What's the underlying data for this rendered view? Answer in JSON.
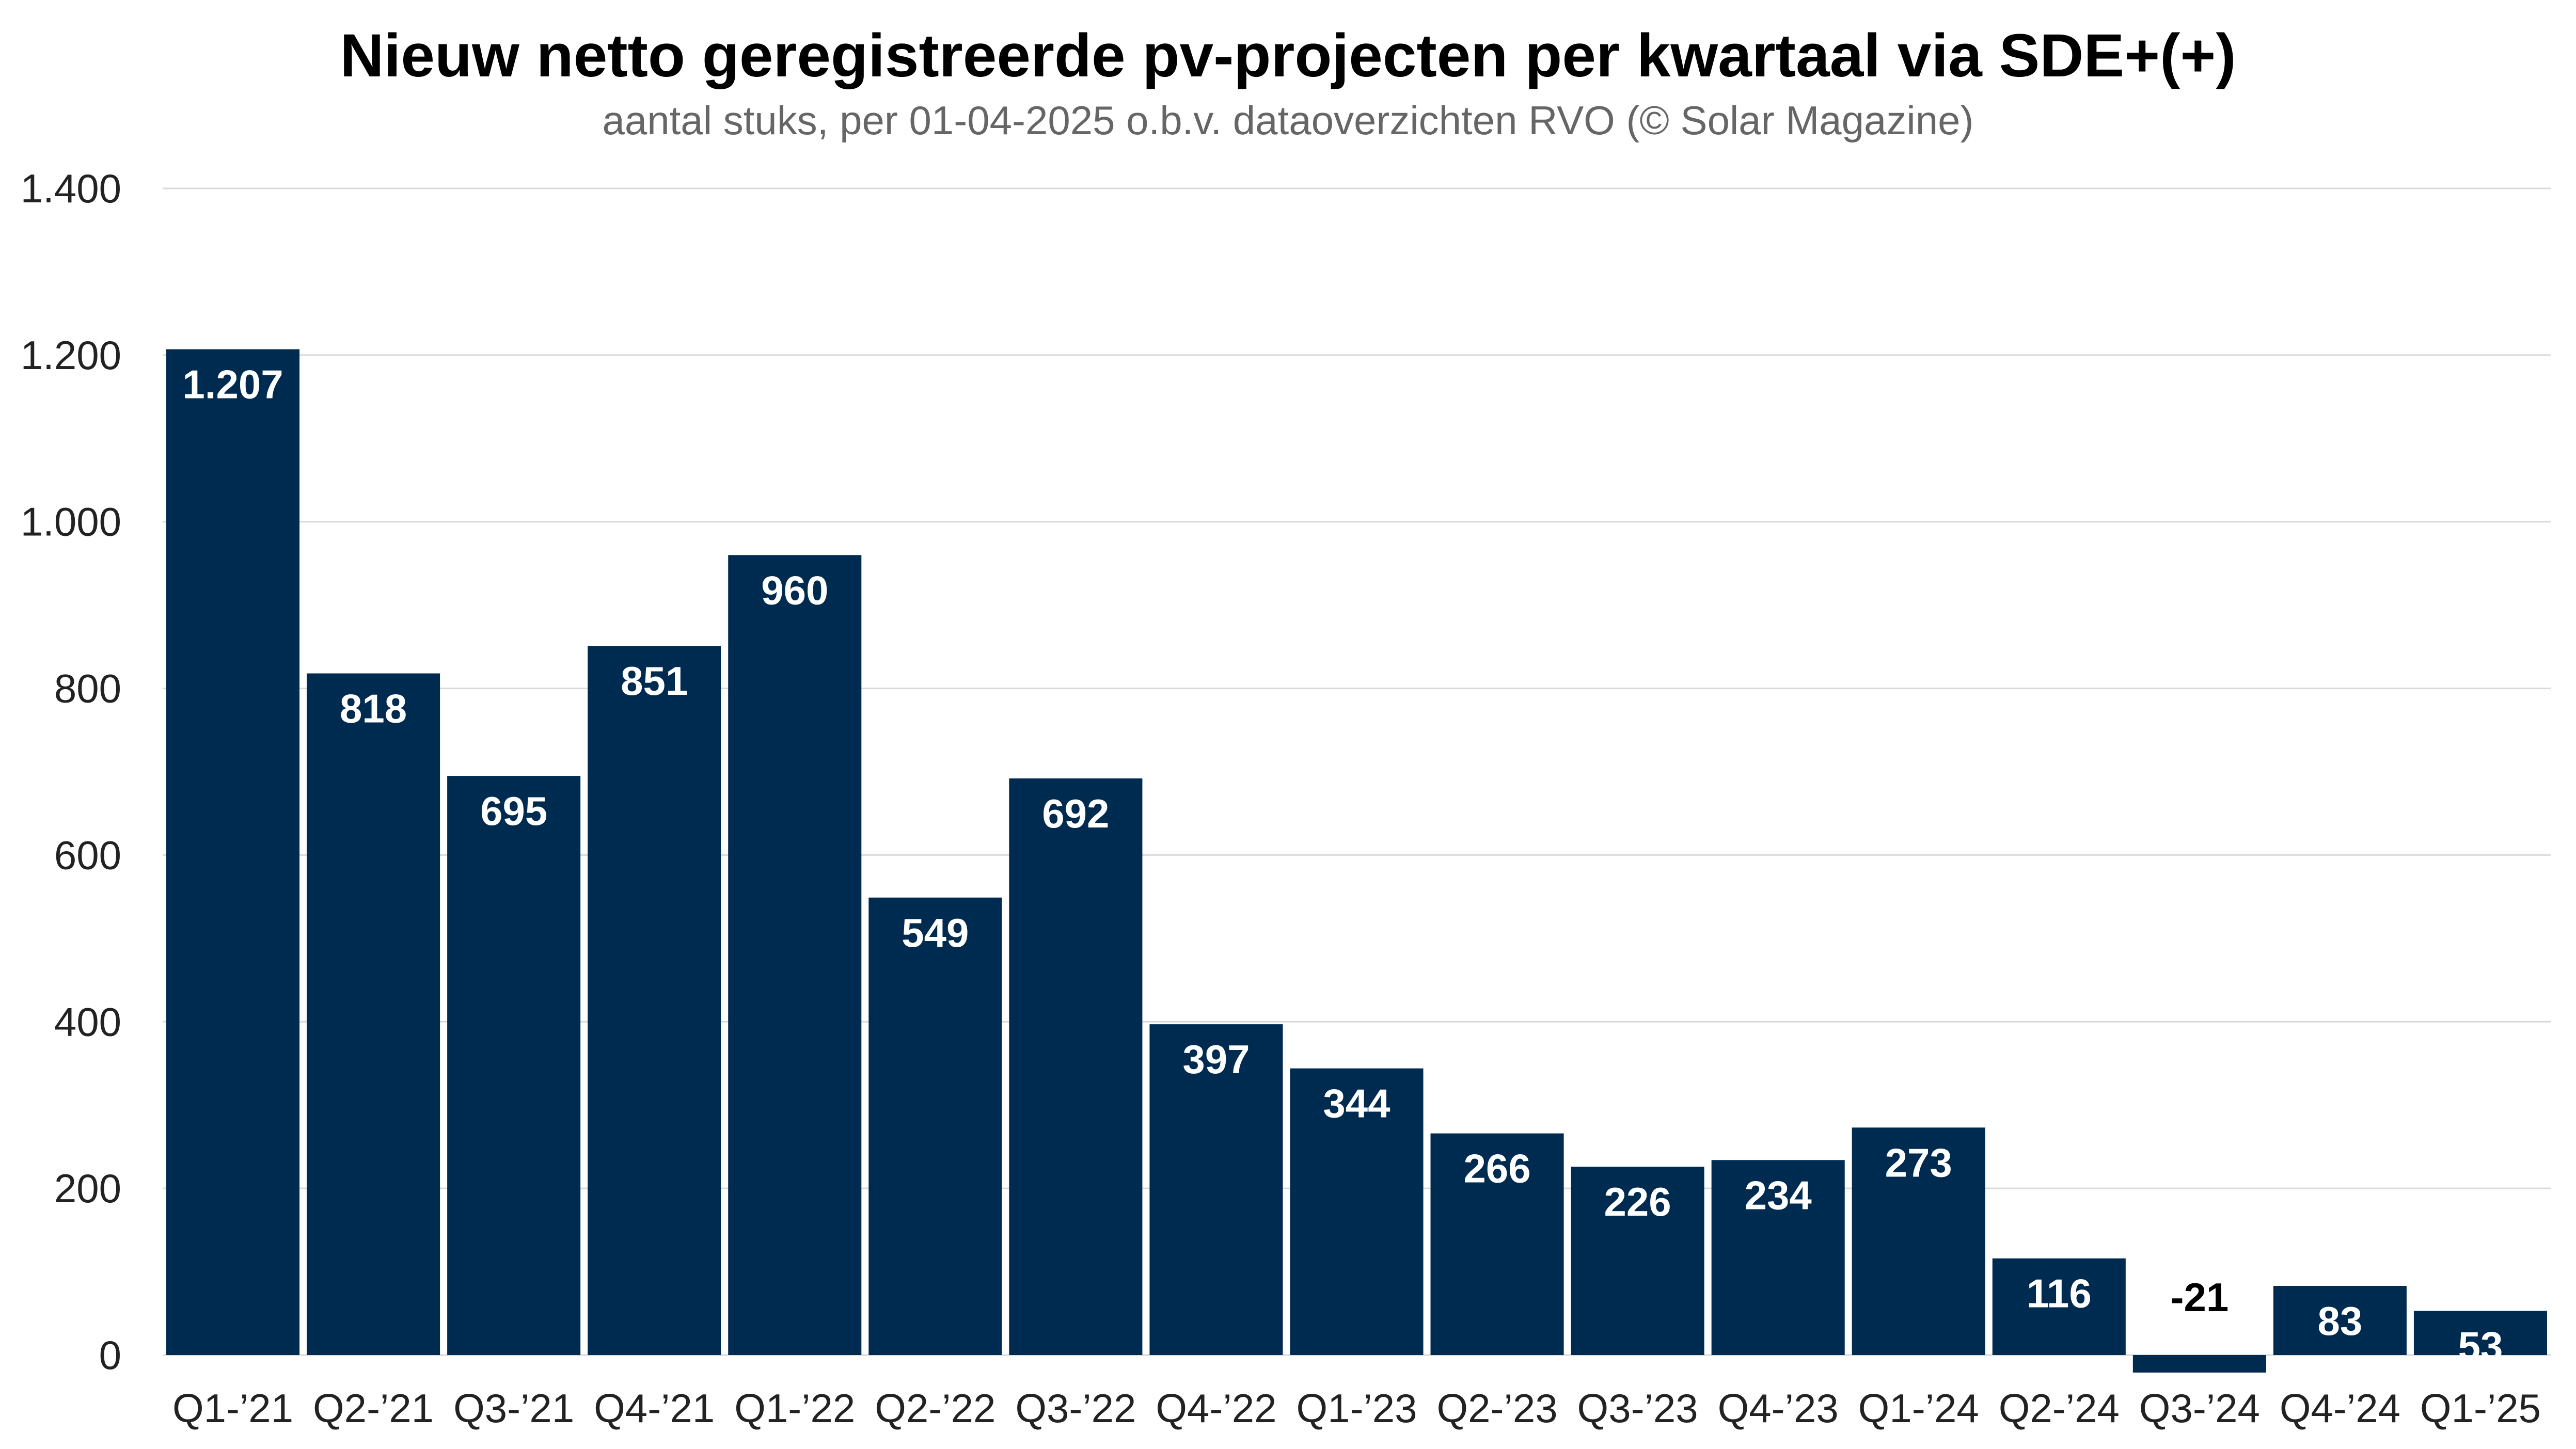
{
  "chart_data": {
    "type": "bar",
    "title": "Nieuw netto geregistreerde pv-projecten per kwartaal via SDE+(+)",
    "subtitle": "aantal stuks, per 01-04-2025 o.b.v. dataoverzichten RVO (© Solar Magazine)",
    "xlabel": "",
    "ylabel": "",
    "categories": [
      "Q1-’21",
      "Q2-’21",
      "Q3-’21",
      "Q4-’21",
      "Q1-’22",
      "Q2-’22",
      "Q3-’22",
      "Q4-’22",
      "Q1-’23",
      "Q2-’23",
      "Q3-’23",
      "Q4-’23",
      "Q1-’24",
      "Q2-’24",
      "Q3-’24",
      "Q4-’24",
      "Q1-’25"
    ],
    "values": [
      1207,
      818,
      695,
      851,
      960,
      549,
      692,
      397,
      344,
      266,
      226,
      234,
      273,
      116,
      -21,
      83,
      53
    ],
    "data_labels": [
      "1.207",
      "818",
      "695",
      "851",
      "960",
      "549",
      "692",
      "397",
      "344",
      "266",
      "226",
      "234",
      "273",
      "116",
      "-21",
      "83",
      "53"
    ],
    "ylim": [
      0,
      1400
    ],
    "yticks": [
      0,
      200,
      400,
      600,
      800,
      1000,
      1200,
      1400
    ],
    "ytick_labels": [
      "0",
      "200",
      "400",
      "600",
      "800",
      "1.000",
      "1.200",
      "1.400"
    ],
    "grid": true,
    "legend": "none",
    "bar_color": "#002b50",
    "label_color_inside": "#ffffff",
    "label_color_outside": "#000000",
    "grid_color": "#d9d9d9"
  }
}
